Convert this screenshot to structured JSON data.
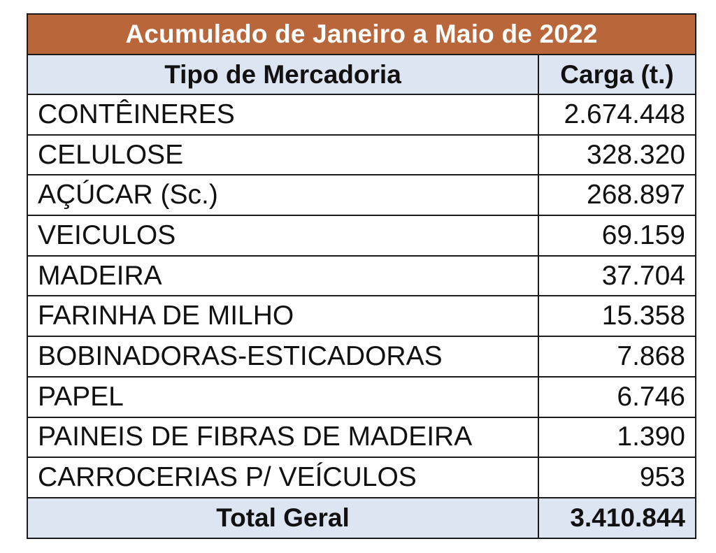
{
  "table": {
    "title": "Acumulado de Janeiro a Maio de 2022",
    "headers": {
      "type": "Tipo de Mercadoria",
      "load": "Carga (t.)"
    },
    "rows": [
      {
        "type": "CONTÊINERES",
        "load": "2.674.448"
      },
      {
        "type": "CELULOSE",
        "load": "328.320"
      },
      {
        "type": "AÇÚCAR (Sc.)",
        "load": "268.897"
      },
      {
        "type": "VEICULOS",
        "load": "69.159"
      },
      {
        "type": "MADEIRA",
        "load": "37.704"
      },
      {
        "type": "FARINHA DE MILHO",
        "load": "15.358"
      },
      {
        "type": "BOBINADORAS-ESTICADORAS",
        "load": "7.868"
      },
      {
        "type": "PAPEL",
        "load": "6.746"
      },
      {
        "type": "PAINEIS DE FIBRAS DE MADEIRA",
        "load": "1.390"
      },
      {
        "type": "CARROCERIAS P/ VEÍCULOS",
        "load": "953"
      }
    ],
    "total": {
      "label": "Total Geral",
      "value": "3.410.844"
    }
  },
  "colors": {
    "title_bg": "#b8663a",
    "header_bg": "#dde4f2",
    "border": "#1a1a1a"
  }
}
